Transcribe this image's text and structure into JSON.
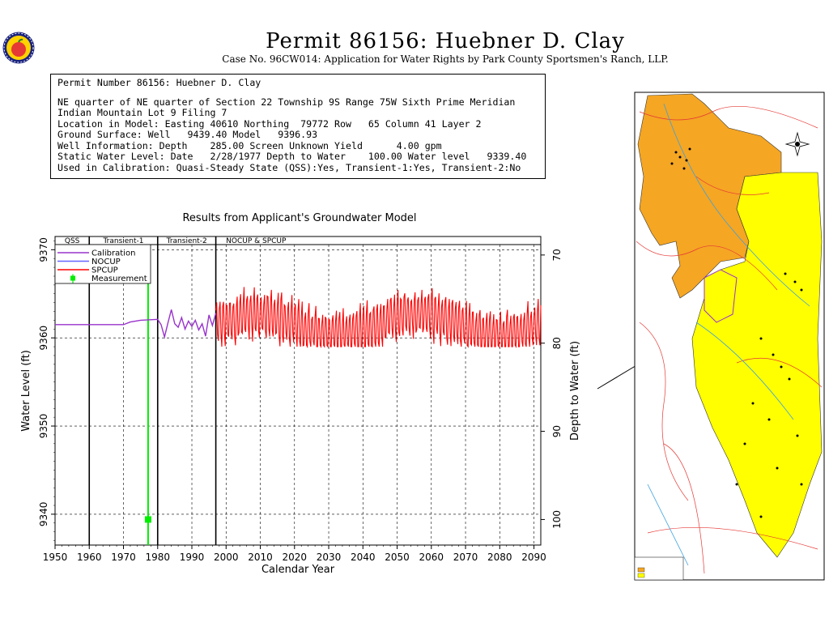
{
  "header": {
    "title": "Permit 86156:   Huebner D. Clay",
    "subtitle": "Case No. 96CW014: Application for Water Rights by Park County Sportsmen's Ranch, LLP."
  },
  "info_box": {
    "line1": "Permit Number 86156: Huebner D. Clay",
    "line2": "NE quarter of NE quarter of Section 22 Township 9S Range 75W Sixth Prime Meridian",
    "line3": "Indian Mountain Lot 9 Filing 7",
    "line4": "Location in Model: Easting 40610 Northing  79772 Row   65 Column 41 Layer 2",
    "line5": "Ground Surface: Well   9439.40 Model   9396.93",
    "line6": "Well Information: Depth    285.00 Screen Unknown Yield      4.00 gpm",
    "line7": "Static Water Level: Date   2/28/1977 Depth to Water    100.00 Water level   9339.40",
    "line8": "Used in Calibration: Quasi-Steady State (QSS):Yes, Transient-1:Yes, Transient-2:No"
  },
  "colors": {
    "calibration": "#9933cc",
    "nocup": "#6666ff",
    "spcup": "#ff0000",
    "measurement": "#00ee00",
    "map_orange": "#f5a623",
    "map_yellow": "#ffff00"
  },
  "chart_data": {
    "type": "line",
    "title": "Results from Applicant's Groundwater Model",
    "xlabel": "Calendar Year",
    "ylabel": "Water Level (ft)",
    "y2label": "Depth to Water (ft)",
    "xlim": [
      1950,
      2092
    ],
    "ylim": [
      9336.5,
      9371.5
    ],
    "xticks": [
      1950,
      1960,
      1970,
      1980,
      1990,
      2000,
      2010,
      2020,
      2030,
      2040,
      2050,
      2060,
      2070,
      2080,
      2090
    ],
    "yticks": [
      9340,
      9350,
      9360,
      9370
    ],
    "y2ticks": [
      70,
      80,
      90,
      100
    ],
    "periods": [
      {
        "label": "QSS",
        "start": 1950,
        "end": 1960
      },
      {
        "label": "Transient-1",
        "start": 1960,
        "end": 1980
      },
      {
        "label": "Transient-2",
        "start": 1980,
        "end": 1997
      },
      {
        "label": "NOCUP  &  SPCUP",
        "start": 1997,
        "end": 2092
      }
    ],
    "legend": [
      {
        "name": "Calibration",
        "color_key": "calibration"
      },
      {
        "name": "NOCUP",
        "color_key": "nocup"
      },
      {
        "name": "SPCUP",
        "color_key": "spcup"
      },
      {
        "name": "Measurement",
        "color_key": "measurement"
      }
    ],
    "series": [
      {
        "name": "Calibration",
        "x": [
          1950,
          1970,
          1972,
          1975,
          1980,
          1981,
          1982,
          1983,
          1984,
          1985,
          1986,
          1987,
          1988,
          1989,
          1990,
          1991,
          1992,
          1993,
          1994,
          1995,
          1996,
          1997
        ],
        "y": [
          9361.5,
          9361.5,
          9361.8,
          9362.0,
          9362.1,
          9361.5,
          9360.1,
          9361.7,
          9363.2,
          9361.6,
          9361.2,
          9362.3,
          9361.0,
          9361.9,
          9361.3,
          9362.0,
          9360.9,
          9361.6,
          9360.2,
          9362.6,
          9361.4,
          9362.8
        ]
      },
      {
        "name": "SPCUP",
        "x_start": 1997,
        "x_end": 2092,
        "mean": 9361.5,
        "amplitude": 3.4,
        "period_years": 1,
        "min_y": 9359.0,
        "max_y": 9367.5
      },
      {
        "name": "Measurement",
        "x": [
          1977.2
        ],
        "y": [
          9339.4
        ]
      }
    ],
    "measurement_line_x": 1977.2
  }
}
